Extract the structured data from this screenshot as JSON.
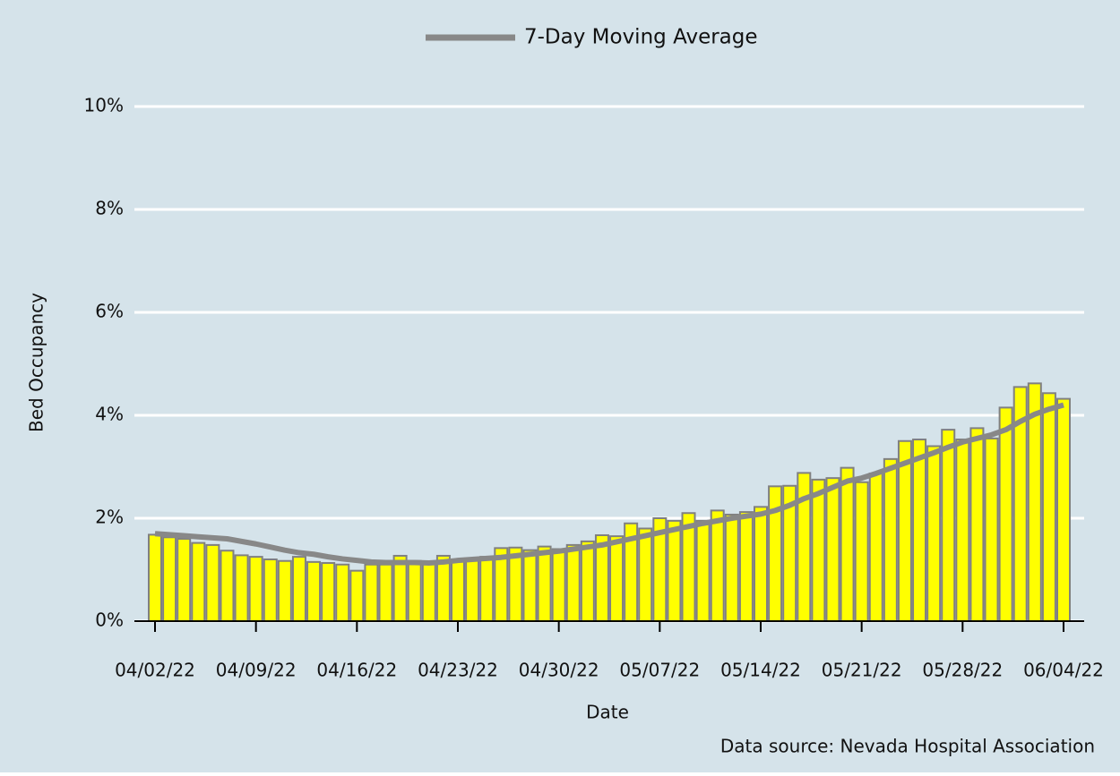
{
  "chart_data": {
    "type": "bar",
    "x_label": "Date",
    "y_label": "Bed Occupancy",
    "source": "Data source: Nevada Hospital Association",
    "categories": [
      "04/02/22",
      null,
      null,
      null,
      null,
      null,
      null,
      "04/09/22",
      null,
      null,
      null,
      null,
      null,
      null,
      "04/16/22",
      null,
      null,
      null,
      null,
      null,
      null,
      "04/23/22",
      null,
      null,
      null,
      null,
      null,
      null,
      "04/30/22",
      null,
      null,
      null,
      null,
      null,
      null,
      "05/07/22",
      null,
      null,
      null,
      null,
      null,
      null,
      "05/14/22",
      null,
      null,
      null,
      null,
      null,
      null,
      "05/21/22",
      null,
      null,
      null,
      null,
      null,
      null,
      "05/28/22",
      null,
      null,
      null,
      null,
      null,
      null,
      "06/04/22"
    ],
    "series": [
      {
        "type": "bar",
        "color": "#ffff00",
        "edge_color": "#808080",
        "values": [
          1.68,
          1.63,
          1.6,
          1.52,
          1.48,
          1.37,
          1.28,
          1.25,
          1.2,
          1.17,
          1.25,
          1.15,
          1.13,
          1.1,
          0.98,
          1.1,
          1.1,
          1.27,
          1.17,
          1.12,
          1.27,
          1.2,
          1.22,
          1.25,
          1.42,
          1.43,
          1.38,
          1.45,
          1.4,
          1.48,
          1.55,
          1.67,
          1.65,
          1.9,
          1.8,
          2.0,
          1.95,
          2.1,
          1.95,
          2.15,
          2.07,
          2.12,
          2.22,
          2.62,
          2.63,
          2.88,
          2.75,
          2.78,
          2.98,
          2.7,
          2.87,
          3.15,
          3.5,
          3.53,
          3.4,
          3.72,
          3.53,
          3.75,
          3.55,
          4.15,
          4.55,
          4.62,
          4.43,
          4.32
        ]
      },
      {
        "type": "line",
        "name": "7-Day Moving Average",
        "color": "#888888",
        "values": [
          1.7,
          1.68,
          1.66,
          1.64,
          1.62,
          1.6,
          1.55,
          1.5,
          1.44,
          1.38,
          1.33,
          1.3,
          1.25,
          1.21,
          1.18,
          1.15,
          1.14,
          1.14,
          1.14,
          1.13,
          1.15,
          1.18,
          1.2,
          1.22,
          1.24,
          1.27,
          1.3,
          1.33,
          1.36,
          1.4,
          1.44,
          1.48,
          1.54,
          1.6,
          1.66,
          1.72,
          1.78,
          1.84,
          1.9,
          1.95,
          2.0,
          2.04,
          2.08,
          2.15,
          2.25,
          2.38,
          2.48,
          2.6,
          2.72,
          2.78,
          2.87,
          2.97,
          3.07,
          3.17,
          3.27,
          3.38,
          3.48,
          3.55,
          3.62,
          3.72,
          3.88,
          4.02,
          4.12,
          4.2
        ]
      }
    ],
    "ylim": [
      0,
      10
    ],
    "yticks": [
      {
        "value": 0,
        "label": "0%"
      },
      {
        "value": 2,
        "label": "2%"
      },
      {
        "value": 4,
        "label": "4%"
      },
      {
        "value": 6,
        "label": "6%"
      },
      {
        "value": 8,
        "label": "8%"
      },
      {
        "value": 10,
        "label": "10%"
      }
    ],
    "grid": true,
    "legend": "top",
    "background": "#d5e3ea"
  }
}
